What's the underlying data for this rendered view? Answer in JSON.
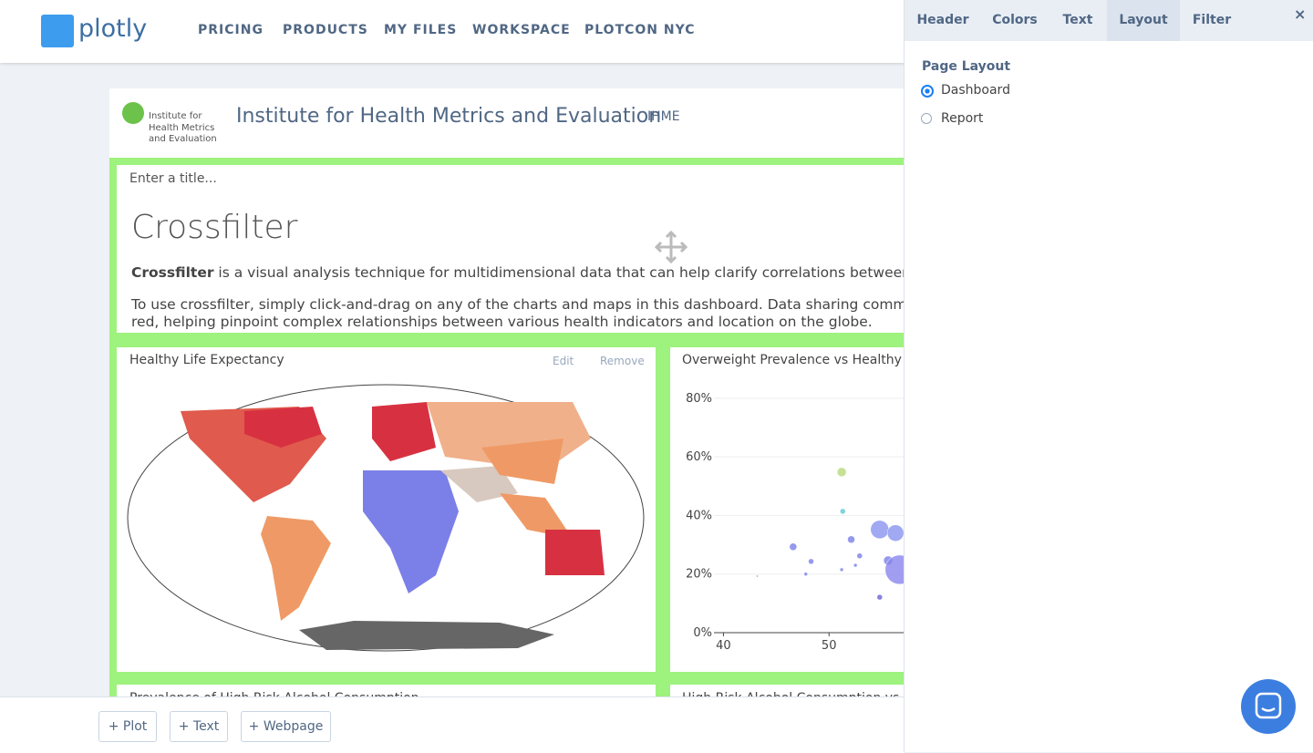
{
  "nav": {
    "logo": "plotly",
    "links": [
      "PRICING",
      "PRODUCTS",
      "MY FILES",
      "WORKSPACE",
      "PLOTCON NYC"
    ]
  },
  "header": {
    "logo_lines": [
      "Institute for",
      "Health Metrics",
      "and Evaluation"
    ],
    "title": "Institute for Health Metrics and Evaluation",
    "short": "IHME"
  },
  "text_block": {
    "placeholder": "Enter a title...",
    "heading": "Crossfilter",
    "para1_bold": "Crossfilter",
    "para1_rest": " is a visual analysis technique for multidimensional data that can help clarify correlations between dimen",
    "para2_line1": "To use crossfilter, simply click-and-drag on any of the charts and maps in this dashboard. Data sharing common row",
    "para2_line2": "red, helping pinpoint complex relationships between various health indicators and location on the globe."
  },
  "map_card": {
    "title": "Healthy Life Expectancy",
    "edit": "Edit",
    "remove": "Remove"
  },
  "chart_data": {
    "type": "scatter",
    "title": "Overweight Prevalence vs Healthy Life",
    "xlim": [
      39.1,
      60
    ],
    "ylim": [
      0,
      84
    ],
    "xticks": [
      40,
      50
    ],
    "yticks": [
      {
        "value": 0,
        "label": "0%"
      },
      {
        "value": 20,
        "label": "20%"
      },
      {
        "value": 40,
        "label": "40%"
      },
      {
        "value": 60,
        "label": "60%"
      },
      {
        "value": 80,
        "label": "80%"
      }
    ],
    "grid": true,
    "x": [
      51.2,
      51.3,
      46.6,
      47.8,
      43.2,
      54.8,
      56.3,
      52.1,
      52.9,
      55.6,
      56.7,
      54.8,
      48.3,
      52.5,
      51.2
    ],
    "values": [
      54.8,
      41.4,
      29.3,
      20,
      19.3,
      35.2,
      34,
      31.8,
      26.2,
      24.6,
      21.5,
      12.1,
      24.3,
      23,
      21.5
    ],
    "sizes": [
      5,
      3,
      4,
      2,
      1,
      10,
      9,
      4,
      3,
      5,
      16,
      3,
      3,
      2,
      2
    ],
    "colors": [
      "#b8d97a",
      "#5fc9d6",
      "#7b7fe8",
      "#7b7fe8",
      "#6b63d8",
      "#8a93f0",
      "#8a93f0",
      "#7b7fe8",
      "#7b7fe8",
      "#7b7fe8",
      "#8a86ee",
      "#6b63d8",
      "#7b7fe8",
      "#7b7fe8",
      "#7b7fe8"
    ]
  },
  "bottom_cards": [
    "Prevalence of High Risk Alcohol Consumption",
    "High Risk Alcohol Consumption vs He"
  ],
  "toolbar": [
    "+ Plot",
    "+ Text",
    "+ Webpage"
  ],
  "panel": {
    "tabs": [
      "Header",
      "Colors",
      "Text",
      "Layout",
      "Filter"
    ],
    "section": "Page Layout",
    "options": [
      "Dashboard",
      "Report"
    ]
  }
}
